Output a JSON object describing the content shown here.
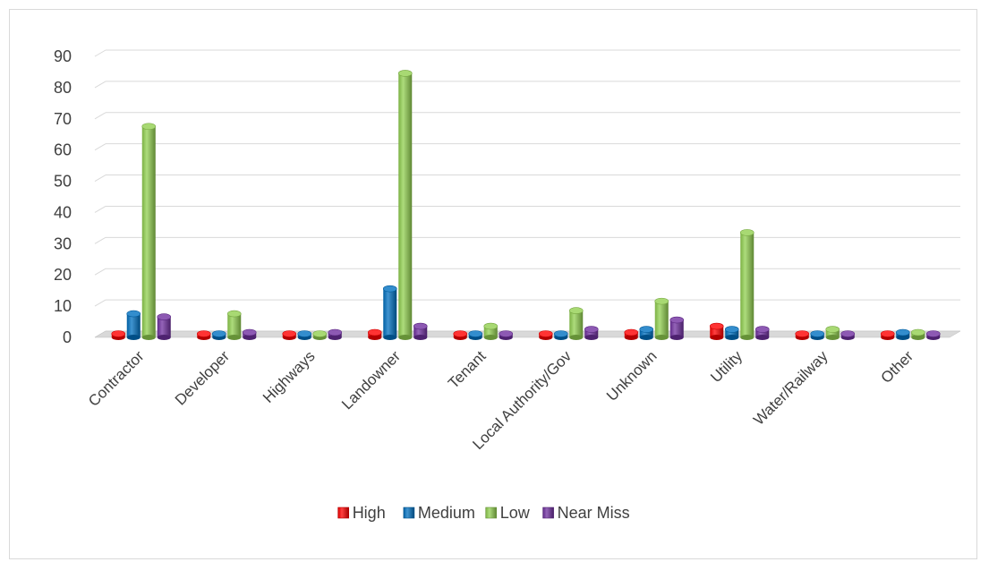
{
  "chart_data": {
    "type": "bar",
    "title": "",
    "xlabel": "",
    "ylabel": "",
    "ylim": [
      0,
      90
    ],
    "yticks": [
      0,
      10,
      20,
      30,
      40,
      50,
      60,
      70,
      80,
      90
    ],
    "grid": true,
    "legend_position": "bottom",
    "categories": [
      "Contractor",
      "Developer",
      "Highways",
      "Landowner",
      "Tenant",
      "Local Authority/Gov",
      "Unknown",
      "Utility",
      "Water/Railway",
      "Other"
    ],
    "series": [
      {
        "name": "High",
        "color": "#ff0000",
        "values": [
          0,
          0,
          0,
          1,
          0,
          0,
          1,
          3,
          0,
          0
        ]
      },
      {
        "name": "Medium",
        "color": "#0070c0",
        "values": [
          7,
          0,
          0,
          15,
          0,
          0,
          2,
          2,
          0,
          1
        ]
      },
      {
        "name": "Low",
        "color": "#92d050",
        "values": [
          67,
          7,
          0,
          84,
          3,
          8,
          11,
          33,
          2,
          1
        ]
      },
      {
        "name": "Near Miss",
        "color": "#7030a0",
        "values": [
          6,
          1,
          1,
          3,
          0,
          2,
          5,
          2,
          0,
          0
        ]
      }
    ]
  }
}
